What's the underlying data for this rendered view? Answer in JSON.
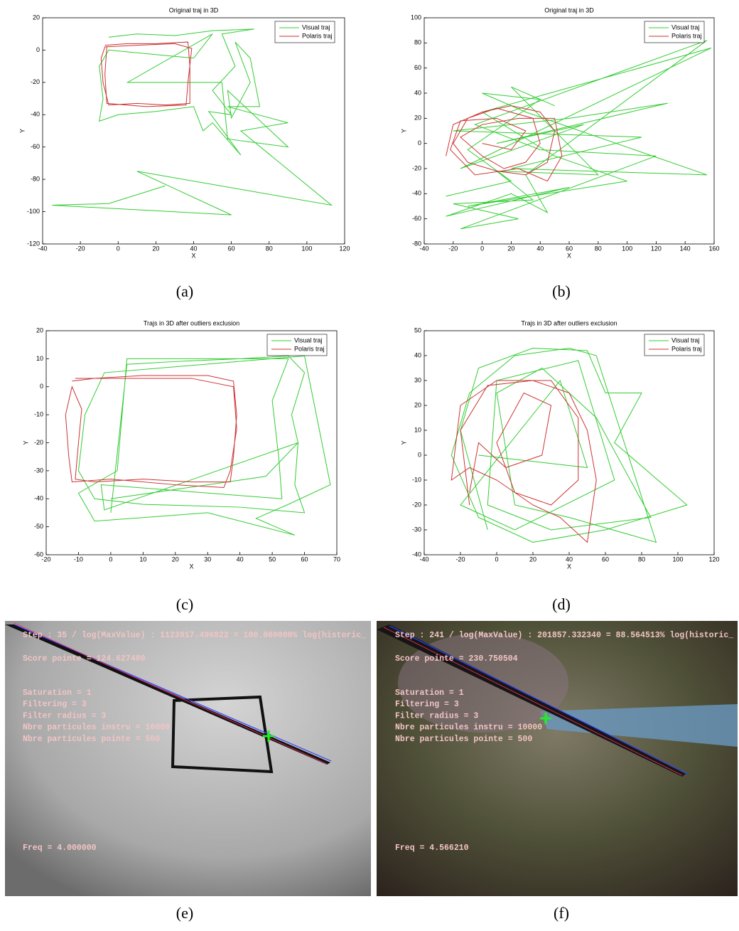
{
  "chart_data": [
    {
      "type": "line",
      "title": "Original traj in 3D",
      "xlabel": "X",
      "ylabel": "Y",
      "xlim": [
        -40,
        120
      ],
      "xticks": [
        -40,
        -20,
        0,
        20,
        40,
        60,
        80,
        100,
        120
      ],
      "ylim": [
        -120,
        20
      ],
      "yticks": [
        -120,
        -100,
        -80,
        -60,
        -40,
        -20,
        0,
        20
      ],
      "legend": "upper right",
      "series": [
        {
          "name": "Visual traj",
          "color": "#33cc33",
          "x": [
            -5,
            10,
            30,
            50,
            72,
            55,
            62,
            50,
            60,
            48,
            65,
            50,
            45,
            40,
            20,
            0,
            -10,
            -8,
            -10,
            -5,
            40,
            50,
            5,
            55,
            58,
            90,
            58,
            60,
            70,
            62,
            70,
            75,
            58,
            90,
            65,
            113,
            10,
            60,
            -35,
            -5,
            25
          ],
          "values": [
            8,
            10,
            9,
            12,
            13,
            10,
            -10,
            -25,
            -40,
            -38,
            -65,
            -45,
            -50,
            -35,
            -38,
            -40,
            -44,
            -30,
            -10,
            0,
            -5,
            10,
            -20,
            -20,
            -55,
            -60,
            -25,
            -42,
            -20,
            5,
            -5,
            -35,
            -35,
            -45,
            -50,
            -96,
            -75,
            -102,
            -96,
            -95,
            -84
          ]
        },
        {
          "name": "Polaris traj",
          "color": "#cc3333",
          "x": [
            -7,
            5,
            20,
            37,
            38,
            38,
            25,
            10,
            -5,
            -8,
            -9,
            -7,
            10,
            30,
            39,
            37,
            36,
            15,
            -6,
            -7,
            -6
          ],
          "values": [
            3,
            4,
            4,
            5,
            -10,
            -33,
            -34,
            -33,
            -34,
            -20,
            -5,
            2,
            3,
            4,
            1,
            -20,
            -34,
            -35,
            -33,
            -15,
            2
          ]
        }
      ]
    },
    {
      "type": "line",
      "title": "Original traj in 3D",
      "xlabel": "X",
      "ylabel": "Y",
      "xlim": [
        -40,
        160
      ],
      "xticks": [
        -40,
        -20,
        0,
        20,
        40,
        60,
        80,
        100,
        120,
        140,
        160
      ],
      "ylim": [
        -80,
        100
      ],
      "yticks": [
        -80,
        -60,
        -40,
        -20,
        0,
        20,
        40,
        60,
        80,
        100
      ],
      "legend": "upper right",
      "series": [
        {
          "name": "Visual traj",
          "color": "#33cc33",
          "x": [
            -25,
            20,
            -10,
            40,
            0,
            30,
            155,
            20,
            110,
            -20,
            60,
            128,
            10,
            70,
            -15,
            158,
            0,
            50,
            100,
            -10,
            60,
            -25,
            20,
            45,
            30,
            155,
            -5,
            40,
            120,
            -15,
            25,
            -20,
            35,
            10,
            80,
            20,
            50
          ],
          "values": [
            -42,
            -30,
            -5,
            35,
            40,
            25,
            -25,
            -20,
            5,
            10,
            20,
            32,
            0,
            15,
            -20,
            76,
            25,
            -10,
            -30,
            -50,
            -35,
            -58,
            -40,
            -55,
            -25,
            82,
            15,
            -5,
            -10,
            -68,
            -60,
            -48,
            -45,
            -22,
            -25,
            45,
            30
          ]
        },
        {
          "name": "Polaris traj",
          "color": "#cc3333",
          "x": [
            -25,
            -20,
            0,
            20,
            40,
            50,
            45,
            30,
            10,
            -10,
            -20,
            -10,
            10,
            35,
            40,
            30,
            15,
            0,
            -15,
            0,
            25,
            50,
            55,
            45,
            25,
            -5,
            -22,
            -15,
            10,
            30,
            20,
            0
          ],
          "values": [
            -10,
            15,
            25,
            30,
            25,
            10,
            -15,
            -25,
            -22,
            -15,
            0,
            20,
            28,
            20,
            0,
            -15,
            -20,
            -10,
            5,
            15,
            20,
            20,
            -10,
            -30,
            -20,
            -25,
            -5,
            18,
            20,
            10,
            -5,
            0
          ]
        }
      ]
    },
    {
      "type": "line",
      "title": "Trajs in 3D after outliers exclusion",
      "xlabel": "X",
      "ylabel": "Y",
      "xlim": [
        -20,
        70
      ],
      "xticks": [
        -20,
        -10,
        0,
        10,
        20,
        30,
        40,
        50,
        60,
        70
      ],
      "ylim": [
        -60,
        20
      ],
      "yticks": [
        -60,
        -50,
        -40,
        -30,
        -20,
        -10,
        0,
        10,
        20
      ],
      "legend": "upper right",
      "series": [
        {
          "name": "Visual traj",
          "color": "#33cc33",
          "x": [
            0,
            5,
            20,
            40,
            55,
            60,
            56,
            58,
            57,
            60,
            40,
            10,
            -5,
            -10,
            -8,
            -2,
            60,
            68,
            55,
            45,
            57,
            30,
            -5,
            -10,
            2,
            5,
            55,
            50,
            52,
            53,
            -3,
            -2,
            58,
            48,
            0
          ],
          "values": [
            -45,
            8,
            9,
            10,
            11,
            5,
            -10,
            -20,
            -35,
            -45,
            -43,
            -42,
            -40,
            -30,
            -10,
            5,
            11,
            -35,
            -42,
            -47,
            -53,
            -45,
            -48,
            -38,
            -30,
            10,
            10,
            -5,
            -25,
            -40,
            -35,
            -44,
            -20,
            -32,
            -40
          ]
        },
        {
          "name": "Polaris traj",
          "color": "#cc3333",
          "x": [
            -12,
            -5,
            10,
            30,
            38,
            39,
            38,
            37,
            25,
            10,
            -5,
            -11,
            -10,
            -9,
            -12,
            -14,
            -13,
            -12,
            0,
            20,
            35,
            37,
            39,
            38,
            25,
            5,
            -11
          ],
          "values": [
            2,
            3,
            4,
            4,
            2,
            -10,
            -25,
            -34,
            -34,
            -33,
            -34,
            -33,
            -20,
            -8,
            0,
            -10,
            -25,
            -34,
            -33,
            -35,
            -36,
            -30,
            -15,
            0,
            3,
            3,
            3
          ]
        }
      ]
    },
    {
      "type": "line",
      "title": "Trajs in 3D after outliers exclusion",
      "xlabel": "X",
      "ylabel": "Y",
      "xlim": [
        -40,
        120
      ],
      "xticks": [
        -40,
        -20,
        0,
        20,
        40,
        60,
        80,
        100,
        120
      ],
      "ylim": [
        -40,
        50
      ],
      "yticks": [
        -40,
        -30,
        -20,
        -10,
        0,
        10,
        20,
        30,
        40,
        50
      ],
      "legend": "upper right",
      "series": [
        {
          "name": "Visual traj",
          "color": "#33cc33",
          "x": [
            -5,
            -20,
            -10,
            20,
            50,
            60,
            80,
            65,
            105,
            60,
            20,
            -10,
            -25,
            -15,
            10,
            40,
            55,
            88,
            40,
            10,
            0,
            25,
            55,
            85,
            30,
            -5,
            0,
            45,
            65,
            10,
            -20,
            35,
            50,
            -10
          ],
          "values": [
            -30,
            10,
            35,
            43,
            42,
            25,
            25,
            5,
            -20,
            -30,
            -35,
            -25,
            0,
            25,
            40,
            43,
            40,
            -35,
            -25,
            -20,
            25,
            35,
            15,
            -25,
            -30,
            -20,
            30,
            38,
            -10,
            -30,
            -20,
            30,
            -5,
            0
          ]
        },
        {
          "name": "Polaris traj",
          "color": "#cc3333",
          "x": [
            -15,
            -20,
            -5,
            20,
            40,
            50,
            55,
            50,
            35,
            20,
            0,
            -15,
            -25,
            -20,
            0,
            30,
            45,
            45,
            30,
            10,
            0,
            15,
            30,
            25,
            5,
            -10,
            -15
          ],
          "values": [
            -20,
            10,
            28,
            30,
            25,
            10,
            -10,
            -35,
            -25,
            -20,
            -10,
            -5,
            -10,
            20,
            30,
            30,
            15,
            -10,
            -20,
            -15,
            5,
            25,
            20,
            0,
            -5,
            5,
            -15
          ]
        }
      ]
    }
  ],
  "panels": [
    {
      "step": "Step : 35 / log(MaxValue) : 1123917.496822 = 100.000000% log(historic_",
      "score": "Score pointe = 124.627480",
      "params": [
        "Saturation = 1",
        "Filtering = 3",
        "Filter radius = 3",
        "Nbre particules instru = 10000",
        "Nbre particules pointe = 500"
      ],
      "freq": "Freq = 4.000000"
    },
    {
      "step": "Step : 241 / log(MaxValue) : 201857.332340 = 88.564513% log(historic_",
      "score": "Score pointe = 230.750504",
      "params": [
        "Saturation = 1",
        "Filtering = 3",
        "Filter radius = 3",
        "Nbre particules instru = 10000",
        "Nbre particules pointe = 500"
      ],
      "freq": "Freq = 4.566210"
    }
  ],
  "captions": [
    "(a)",
    "(b)",
    "(c)",
    "(d)",
    "(e)",
    "(f)"
  ]
}
